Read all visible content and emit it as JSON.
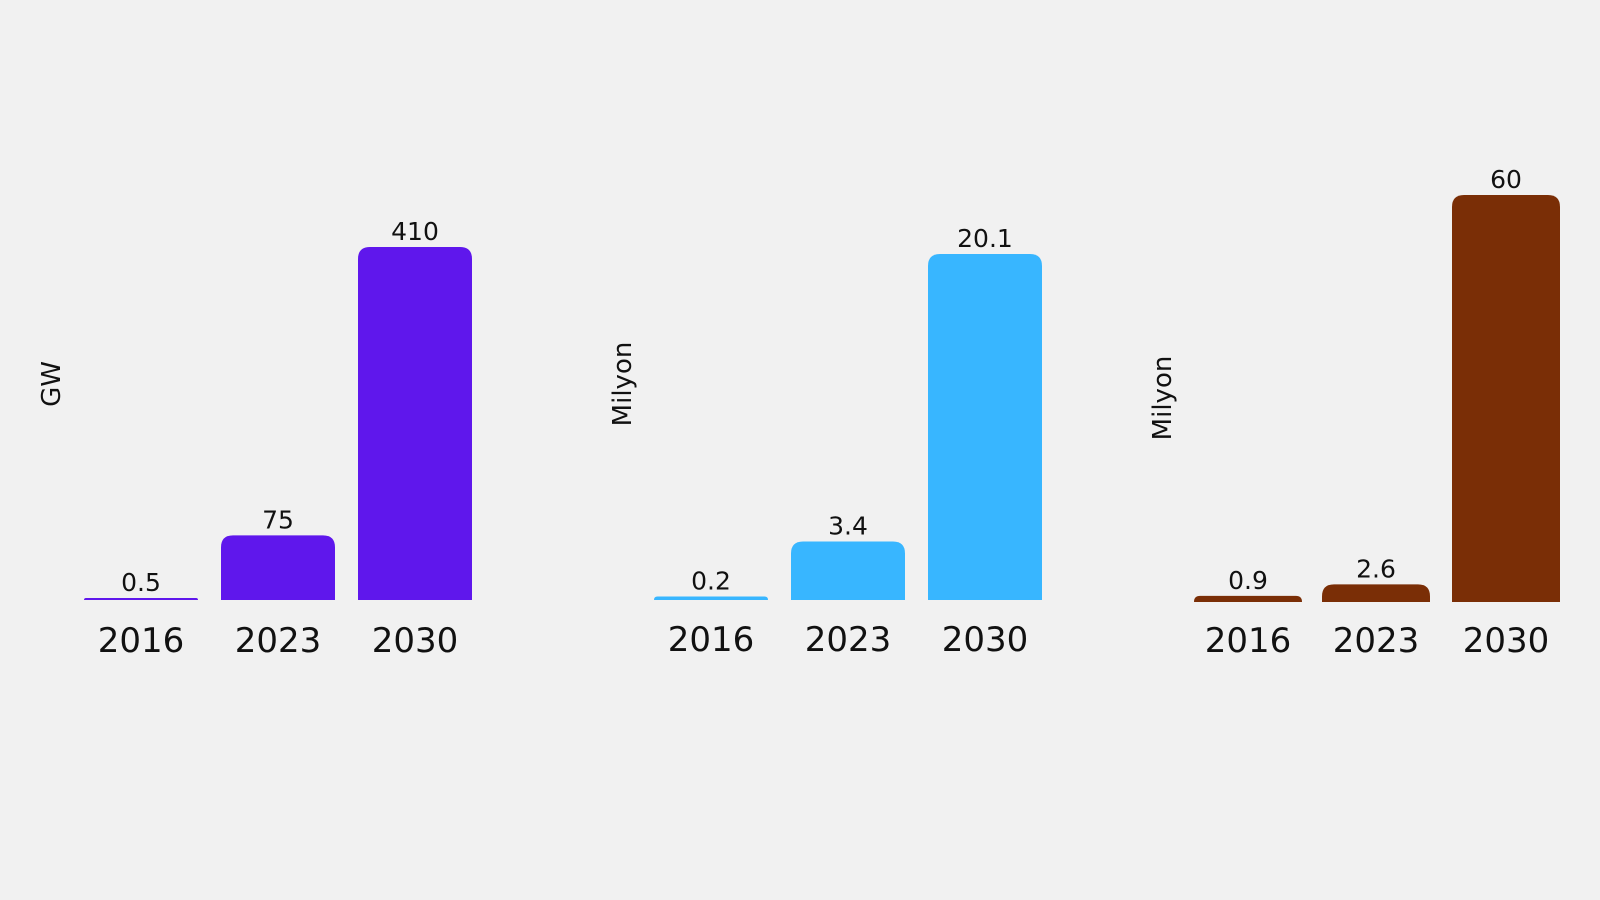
{
  "chart_data": [
    {
      "type": "bar",
      "categories": [
        "2016",
        "2023",
        "2030"
      ],
      "values": [
        0.5,
        75,
        410
      ],
      "data_labels": [
        "0.5",
        "75",
        "410"
      ],
      "title": "",
      "xlabel": "",
      "ylabel": "GW",
      "ylim": [
        0,
        410
      ],
      "grid": false,
      "legend": "none",
      "color": "#5f17ec"
    },
    {
      "type": "bar",
      "categories": [
        "2016",
        "2023",
        "2030"
      ],
      "values": [
        0.2,
        3.4,
        20.1
      ],
      "data_labels": [
        "0.2",
        "3.4",
        "20.1"
      ],
      "title": "",
      "xlabel": "",
      "ylabel": "Milyon",
      "ylim": [
        0,
        20.1
      ],
      "grid": false,
      "legend": "none",
      "color": "#38b6ff"
    },
    {
      "type": "bar",
      "categories": [
        "2016",
        "2023",
        "2030"
      ],
      "values": [
        0.9,
        2.6,
        60
      ],
      "data_labels": [
        "0.9",
        "2.6",
        "60"
      ],
      "title": "",
      "xlabel": "",
      "ylabel": "Milyon",
      "ylim": [
        0,
        60
      ],
      "grid": false,
      "legend": "none",
      "color": "#7a2e06"
    }
  ]
}
